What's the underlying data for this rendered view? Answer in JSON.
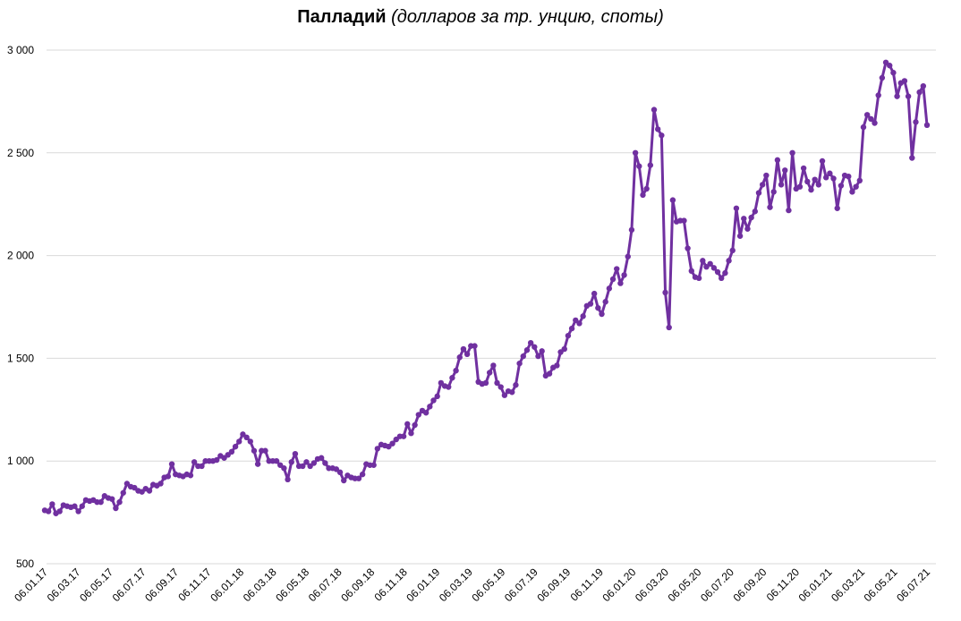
{
  "title": {
    "bold": "Палладий",
    "italic": "(долларов за тр. унцию, споты)"
  },
  "colors": {
    "series": "#7030a0",
    "grid": "#d9d9d9",
    "text": "#000000"
  },
  "chart_data": {
    "type": "line",
    "title": "Палладий (долларов за тр. унцию, споты)",
    "xlabel": "",
    "ylabel": "",
    "ylim": [
      500,
      3000
    ],
    "yticks": [
      500,
      1000,
      1500,
      2000,
      2500,
      3000
    ],
    "ytick_labels": [
      "500",
      "1 000",
      "1 500",
      "2 000",
      "2 500",
      "3 000"
    ],
    "xtick_labels": [
      "06.01.17",
      "06.03.17",
      "06.05.17",
      "06.07.17",
      "06.09.17",
      "06.11.17",
      "06.01.18",
      "06.03.18",
      "06.05.18",
      "06.07.18",
      "06.09.18",
      "06.11.18",
      "06.01.19",
      "06.03.19",
      "06.05.19",
      "06.07.19",
      "06.09.19",
      "06.11.19",
      "06.01.20",
      "06.03.20",
      "06.05.20",
      "06.07.20",
      "06.09.20",
      "06.11.20",
      "06.01.21",
      "06.03.21",
      "06.05.21",
      "06.07.21"
    ],
    "grid": true,
    "legend": "none",
    "markers": true,
    "series": [
      {
        "values": [
          760,
          755,
          790,
          745,
          755,
          785,
          780,
          775,
          780,
          755,
          780,
          810,
          805,
          810,
          800,
          800,
          830,
          820,
          815,
          770,
          800,
          845,
          890,
          875,
          870,
          855,
          850,
          865,
          855,
          885,
          880,
          890,
          920,
          925,
          985,
          935,
          930,
          925,
          935,
          930,
          995,
          975,
          975,
          1000,
          1000,
          1000,
          1005,
          1025,
          1015,
          1030,
          1045,
          1070,
          1095,
          1130,
          1115,
          1095,
          1050,
          985,
          1050,
          1050,
          1000,
          1000,
          1000,
          980,
          965,
          910,
          995,
          1035,
          975,
          975,
          995,
          975,
          990,
          1010,
          1015,
          990,
          965,
          965,
          960,
          945,
          905,
          930,
          920,
          915,
          915,
          935,
          985,
          980,
          980,
          1060,
          1080,
          1075,
          1070,
          1085,
          1105,
          1120,
          1120,
          1180,
          1135,
          1175,
          1225,
          1245,
          1235,
          1265,
          1295,
          1315,
          1380,
          1365,
          1360,
          1405,
          1440,
          1505,
          1545,
          1520,
          1560,
          1560,
          1385,
          1375,
          1380,
          1430,
          1465,
          1380,
          1360,
          1320,
          1340,
          1335,
          1370,
          1475,
          1510,
          1540,
          1575,
          1555,
          1510,
          1535,
          1415,
          1425,
          1455,
          1465,
          1530,
          1545,
          1610,
          1645,
          1685,
          1670,
          1705,
          1755,
          1765,
          1815,
          1745,
          1715,
          1775,
          1840,
          1885,
          1935,
          1865,
          1905,
          1995,
          2125,
          2500,
          2435,
          2295,
          2325,
          2440,
          2710,
          2615,
          2585,
          1820,
          1650,
          2270,
          2165,
          2170,
          2170,
          2035,
          1925,
          1895,
          1890,
          1975,
          1945,
          1960,
          1940,
          1920,
          1890,
          1915,
          1975,
          2025,
          2230,
          2095,
          2180,
          2130,
          2185,
          2215,
          2305,
          2345,
          2390,
          2235,
          2310,
          2465,
          2345,
          2415,
          2220,
          2500,
          2325,
          2335,
          2425,
          2360,
          2320,
          2370,
          2345,
          2460,
          2380,
          2400,
          2375,
          2230,
          2340,
          2390,
          2385,
          2310,
          2335,
          2365,
          2625,
          2685,
          2665,
          2645,
          2780,
          2865,
          2940,
          2925,
          2890,
          2775,
          2840,
          2850,
          2775,
          2475,
          2650,
          2795,
          2825,
          2635
        ]
      }
    ]
  }
}
